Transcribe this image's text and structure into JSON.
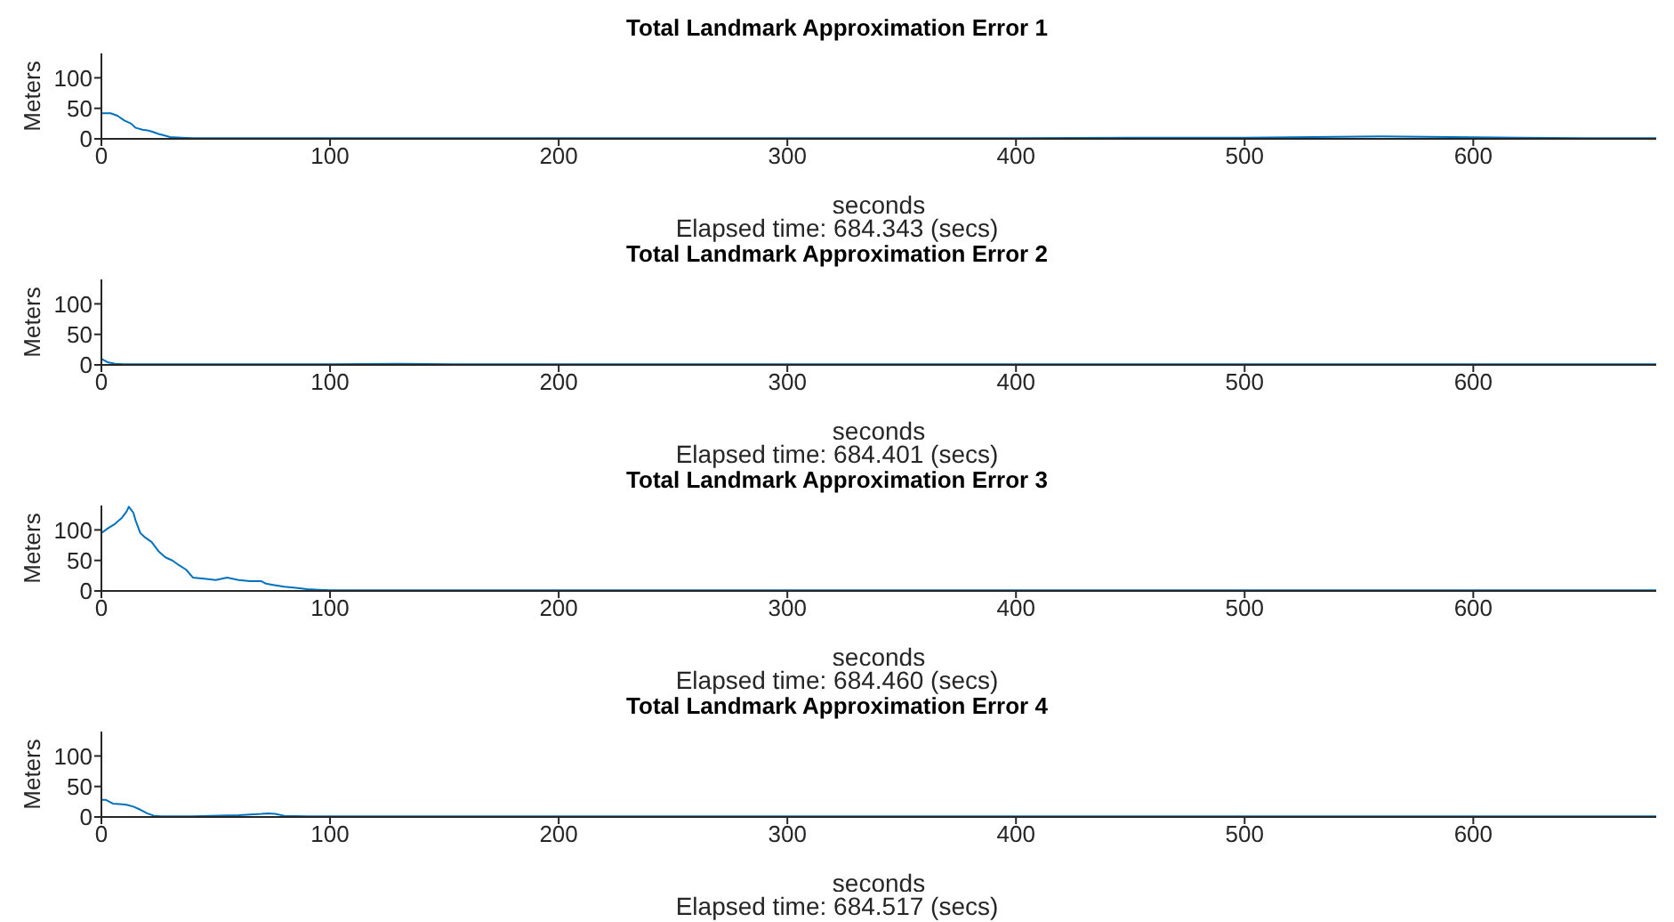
{
  "chart_data": [
    {
      "type": "line",
      "title": "Total Landmark Approximation Error 1",
      "xlabel": "seconds",
      "ylabel": "Meters",
      "annotations": [
        "Elapsed time: 684.343 (secs)"
      ],
      "xlim": [
        0,
        680
      ],
      "xticks": [
        0,
        100,
        200,
        300,
        400,
        500,
        600
      ],
      "ylim": [
        0,
        140
      ],
      "yticks": [
        0,
        50,
        100
      ],
      "grid": false,
      "legend": false,
      "series": [
        {
          "color": "#0072bd",
          "x": [
            0,
            4,
            7,
            10,
            13,
            15,
            18,
            20,
            22,
            25,
            28,
            30,
            35,
            40,
            60,
            100,
            150,
            200,
            250,
            300,
            350,
            400,
            450,
            500,
            530,
            560,
            590,
            620,
            650,
            680
          ],
          "values": [
            42,
            42,
            38,
            30,
            25,
            18,
            15,
            14,
            12,
            8,
            5,
            3,
            2,
            1,
            1,
            1,
            1,
            1,
            1,
            1,
            1,
            1,
            2,
            2,
            3,
            4,
            3,
            2,
            1,
            1
          ]
        }
      ]
    },
    {
      "type": "line",
      "title": "Total Landmark Approximation Error 2",
      "xlabel": "seconds",
      "ylabel": "Meters",
      "annotations": [
        "Elapsed time: 684.401 (secs)"
      ],
      "xlim": [
        0,
        680
      ],
      "xticks": [
        0,
        100,
        200,
        300,
        400,
        500,
        600
      ],
      "ylim": [
        0,
        140
      ],
      "yticks": [
        0,
        50,
        100
      ],
      "grid": false,
      "legend": false,
      "series": [
        {
          "color": "#0072bd",
          "x": [
            0,
            1,
            3,
            6,
            10,
            50,
            100,
            130,
            160,
            200,
            300,
            400,
            500,
            600,
            680
          ],
          "values": [
            10,
            8,
            4,
            2,
            1,
            1,
            1,
            2,
            1,
            1,
            1,
            1,
            1,
            1,
            1
          ]
        }
      ]
    },
    {
      "type": "line",
      "title": "Total Landmark Approximation Error 3",
      "xlabel": "seconds",
      "ylabel": "Meters",
      "annotations": [
        "Elapsed time: 684.460 (secs)"
      ],
      "xlim": [
        0,
        680
      ],
      "xticks": [
        0,
        100,
        200,
        300,
        400,
        500,
        600
      ],
      "ylim": [
        0,
        140
      ],
      "yticks": [
        0,
        50,
        100
      ],
      "grid": false,
      "legend": false,
      "series": [
        {
          "color": "#0072bd",
          "x": [
            0,
            3,
            6,
            9,
            11,
            12,
            13,
            14,
            15,
            17,
            19,
            22,
            25,
            28,
            31,
            34,
            37,
            40,
            45,
            50,
            55,
            60,
            65,
            70,
            72,
            75,
            80,
            85,
            90,
            95,
            100,
            150,
            200,
            300,
            400,
            500,
            600,
            680
          ],
          "values": [
            95,
            103,
            110,
            120,
            130,
            138,
            133,
            128,
            115,
            95,
            88,
            80,
            65,
            55,
            50,
            42,
            35,
            22,
            20,
            18,
            22,
            18,
            16,
            16,
            12,
            10,
            7,
            5,
            3,
            2,
            1,
            1,
            1,
            1,
            1,
            1,
            1,
            1
          ]
        }
      ]
    },
    {
      "type": "line",
      "title": "Total Landmark Approximation Error 4",
      "xlabel": "seconds",
      "ylabel": "Meters",
      "annotations": [
        "Elapsed time: 684.517 (secs)"
      ],
      "xlim": [
        0,
        680
      ],
      "xticks": [
        0,
        100,
        200,
        300,
        400,
        500,
        600
      ],
      "ylim": [
        0,
        140
      ],
      "yticks": [
        0,
        50,
        100
      ],
      "grid": false,
      "legend": false,
      "series": [
        {
          "color": "#0072bd",
          "x": [
            0,
            2,
            5,
            8,
            11,
            14,
            17,
            20,
            23,
            26,
            40,
            60,
            70,
            73,
            76,
            80,
            90,
            100,
            200,
            300,
            400,
            500,
            600,
            680
          ],
          "values": [
            28,
            28,
            22,
            21,
            20,
            17,
            12,
            6,
            2,
            1,
            1,
            3,
            5,
            6,
            5,
            2,
            1,
            1,
            1,
            1,
            1,
            1,
            1,
            1
          ]
        }
      ]
    }
  ]
}
